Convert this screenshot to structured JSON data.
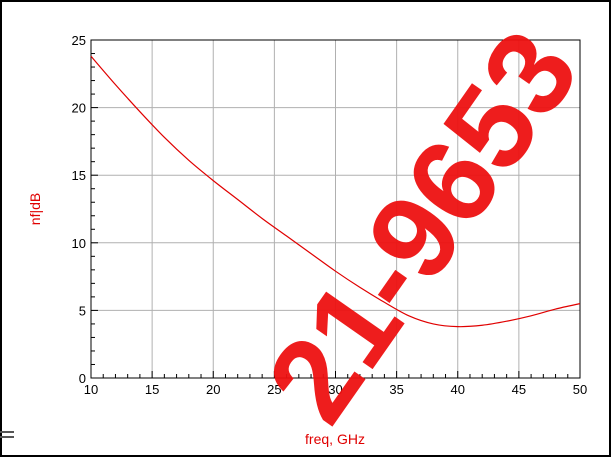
{
  "chart_data": {
    "type": "line",
    "xlabel": "freq, GHz",
    "ylabel": "nf|dB",
    "xlim": [
      10,
      50
    ],
    "ylim": [
      0,
      25
    ],
    "x_ticks": [
      10,
      15,
      20,
      25,
      30,
      35,
      40,
      45,
      50
    ],
    "y_ticks": [
      0,
      5,
      10,
      15,
      20,
      25
    ],
    "grid": true,
    "series": [
      {
        "color": "#e00000",
        "x": [
          10,
          12,
          14,
          16,
          18,
          20,
          22,
          24,
          26,
          28,
          30,
          32,
          34,
          36,
          38,
          40,
          42,
          44,
          46,
          48,
          50
        ],
        "values": [
          23.8,
          21.7,
          19.7,
          17.8,
          16.1,
          14.6,
          13.2,
          11.8,
          10.5,
          9.2,
          7.9,
          6.7,
          5.6,
          4.6,
          4.0,
          3.8,
          3.9,
          4.2,
          4.6,
          5.1,
          5.5
        ]
      }
    ]
  },
  "watermark": {
    "text": "21-9653",
    "color": "#ee1111"
  }
}
